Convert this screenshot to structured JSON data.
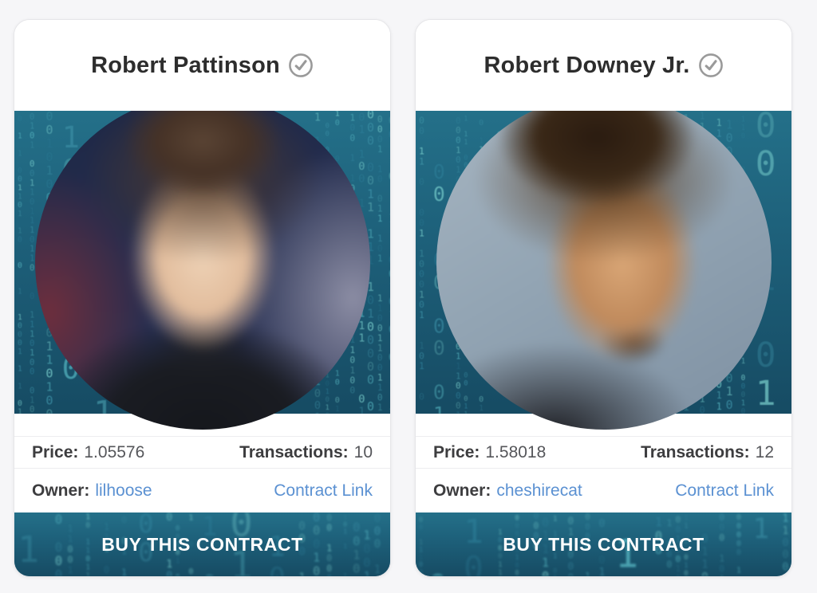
{
  "cards": [
    {
      "name": "Robert Pattinson",
      "verified_icon": "check-circle",
      "price_label": "Price:",
      "price_value": "1.05576",
      "transactions_label": "Transactions:",
      "transactions_value": "10",
      "owner_label": "Owner:",
      "owner_name": "lilhoose",
      "contract_link": "Contract Link",
      "buy_label": "BUY THIS CONTRACT"
    },
    {
      "name": "Robert Downey Jr.",
      "verified_icon": "check-circle",
      "price_label": "Price:",
      "price_value": "1.58018",
      "transactions_label": "Transactions:",
      "transactions_value": "12",
      "owner_label": "Owner:",
      "owner_name": "cheshirecat",
      "contract_link": "Contract Link",
      "buy_label": "BUY THIS CONTRACT"
    }
  ],
  "colors": {
    "link": "#5b91d2",
    "label_text": "#3d3d3f",
    "value_text": "#55565a",
    "title_text": "#2d2d2d",
    "verified_badge": "#9a9a9a",
    "button_text": "#ffffff",
    "matrix_bg_top": "#247089",
    "matrix_bg_bottom": "#164b63",
    "matrix_digit_light": "#7fd6d2",
    "matrix_digit_dark": "#2f819b",
    "page_background": "#f6f6f8"
  }
}
